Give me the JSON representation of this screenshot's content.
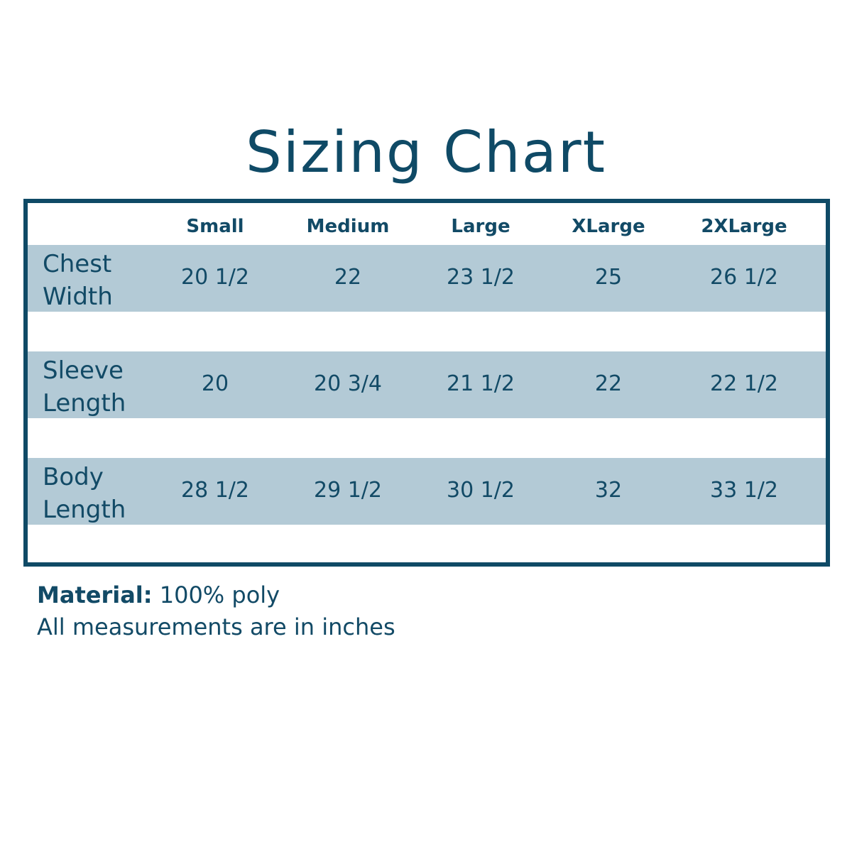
{
  "title": "Sizing Chart",
  "colors": {
    "border": "#0f4a66",
    "band": "#b3cad6",
    "text": "#124a66"
  },
  "table": {
    "headers": [
      "Small",
      "Medium",
      "Large",
      "XLarge",
      "2XLarge"
    ],
    "rows": [
      {
        "label_1": "Chest",
        "label_2": "Width",
        "values": [
          "20 1/2",
          "22",
          "23 1/2",
          "25",
          "26 1/2"
        ]
      },
      {
        "label_1": "Sleeve",
        "label_2": "Length",
        "values": [
          "20",
          "20 3/4",
          "21 1/2",
          "22",
          "22 1/2"
        ]
      },
      {
        "label_1": "Body",
        "label_2": "Length",
        "values": [
          "28 1/2",
          "29 1/2",
          "30 1/2",
          "32",
          "33 1/2"
        ]
      }
    ]
  },
  "notes": {
    "material_label": "Material:",
    "material_value": " 100% poly",
    "units": "All measurements are in inches"
  }
}
